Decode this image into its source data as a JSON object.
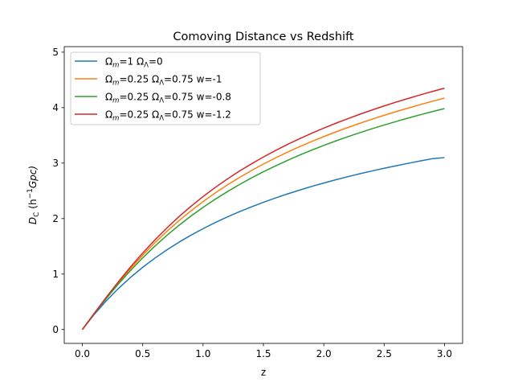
{
  "chart_data": {
    "type": "line",
    "title": "Comoving Distance vs Redshift",
    "xlabel": "z",
    "ylabel": {
      "base": "D",
      "sub": "C",
      "open": " (h",
      "sup": "−1",
      "close": "Gpc)"
    },
    "xlim": [
      -0.15,
      3.15
    ],
    "ylim": [
      -0.25,
      5.1
    ],
    "xticks": [
      0.0,
      0.5,
      1.0,
      1.5,
      2.0,
      2.5,
      3.0
    ],
    "xtick_labels": [
      "0.0",
      "0.5",
      "1.0",
      "1.5",
      "2.0",
      "2.5",
      "3.0"
    ],
    "yticks": [
      0,
      1,
      2,
      3,
      4,
      5
    ],
    "ytick_labels": [
      "0",
      "1",
      "2",
      "3",
      "4",
      "5"
    ],
    "grid": false,
    "legend_position": "top-left",
    "x": [
      0.0,
      0.1,
      0.2,
      0.3,
      0.4,
      0.5,
      0.6,
      0.7,
      0.8,
      0.9,
      1.0,
      1.1,
      1.2,
      1.3,
      1.4,
      1.5,
      1.6,
      1.7,
      1.8,
      1.9,
      2.0,
      2.1,
      2.2,
      2.3,
      2.4,
      2.5,
      2.6,
      2.7,
      2.8,
      2.9,
      3.0
    ],
    "series": [
      {
        "name_parts": [
          {
            "t": "Ω",
            "s": "n"
          },
          {
            "t": "m",
            "s": "sub-i"
          },
          {
            "t": "=1 Ω",
            "s": "n"
          },
          {
            "t": "Λ",
            "s": "sub"
          },
          {
            "t": "=0",
            "s": "n"
          }
        ],
        "color": "#1f77b4",
        "values": [
          0.0,
          0.276,
          0.522,
          0.743,
          0.942,
          1.122,
          1.286,
          1.436,
          1.574,
          1.701,
          1.818,
          1.927,
          2.029,
          2.123,
          2.211,
          2.294,
          2.372,
          2.445,
          2.514,
          2.58,
          2.641,
          2.7,
          2.756,
          2.809,
          2.859,
          2.907,
          2.953,
          2.997,
          3.039,
          3.08,
          3.1
        ]
      },
      {
        "name_parts": [
          {
            "t": "Ω",
            "s": "n"
          },
          {
            "t": "m",
            "s": "sub-i"
          },
          {
            "t": "=0.25 Ω",
            "s": "n"
          },
          {
            "t": "Λ",
            "s": "sub"
          },
          {
            "t": "=0.75 w=-1",
            "s": "n"
          }
        ],
        "color": "#ff7f0e",
        "values": [
          0.0,
          0.294,
          0.577,
          0.847,
          1.101,
          1.34,
          1.562,
          1.77,
          1.962,
          2.141,
          2.306,
          2.461,
          2.605,
          2.739,
          2.865,
          2.983,
          3.094,
          3.198,
          3.297,
          3.39,
          3.478,
          3.563,
          3.643,
          3.719,
          3.792,
          3.862,
          3.929,
          3.993,
          4.055,
          4.115,
          4.172
        ]
      },
      {
        "name_parts": [
          {
            "t": "Ω",
            "s": "n"
          },
          {
            "t": "m",
            "s": "sub-i"
          },
          {
            "t": "=0.25 Ω",
            "s": "n"
          },
          {
            "t": "Λ",
            "s": "sub"
          },
          {
            "t": "=0.75 w=-0.8",
            "s": "n"
          }
        ],
        "color": "#2ca02c",
        "values": [
          0.0,
          0.291,
          0.565,
          0.824,
          1.066,
          1.292,
          1.502,
          1.697,
          1.878,
          2.046,
          2.202,
          2.348,
          2.484,
          2.612,
          2.732,
          2.844,
          2.95,
          3.05,
          3.145,
          3.234,
          3.319,
          3.4,
          3.477,
          3.55,
          3.62,
          3.687,
          3.751,
          3.813,
          3.872,
          3.929,
          3.984
        ]
      },
      {
        "name_parts": [
          {
            "t": "Ω",
            "s": "n"
          },
          {
            "t": "m",
            "s": "sub-i"
          },
          {
            "t": "=0.25 Ω",
            "s": "n"
          },
          {
            "t": "Λ",
            "s": "sub"
          },
          {
            "t": "=0.75 w=-1.2",
            "s": "n"
          }
        ],
        "color": "#d62728",
        "values": [
          0.0,
          0.297,
          0.586,
          0.865,
          1.131,
          1.38,
          1.614,
          1.831,
          2.034,
          2.222,
          2.397,
          2.56,
          2.712,
          2.854,
          2.986,
          3.11,
          3.227,
          3.337,
          3.44,
          3.538,
          3.631,
          3.719,
          3.802,
          3.882,
          3.958,
          4.031,
          4.1,
          4.167,
          4.231,
          4.292,
          4.352
        ]
      }
    ]
  }
}
